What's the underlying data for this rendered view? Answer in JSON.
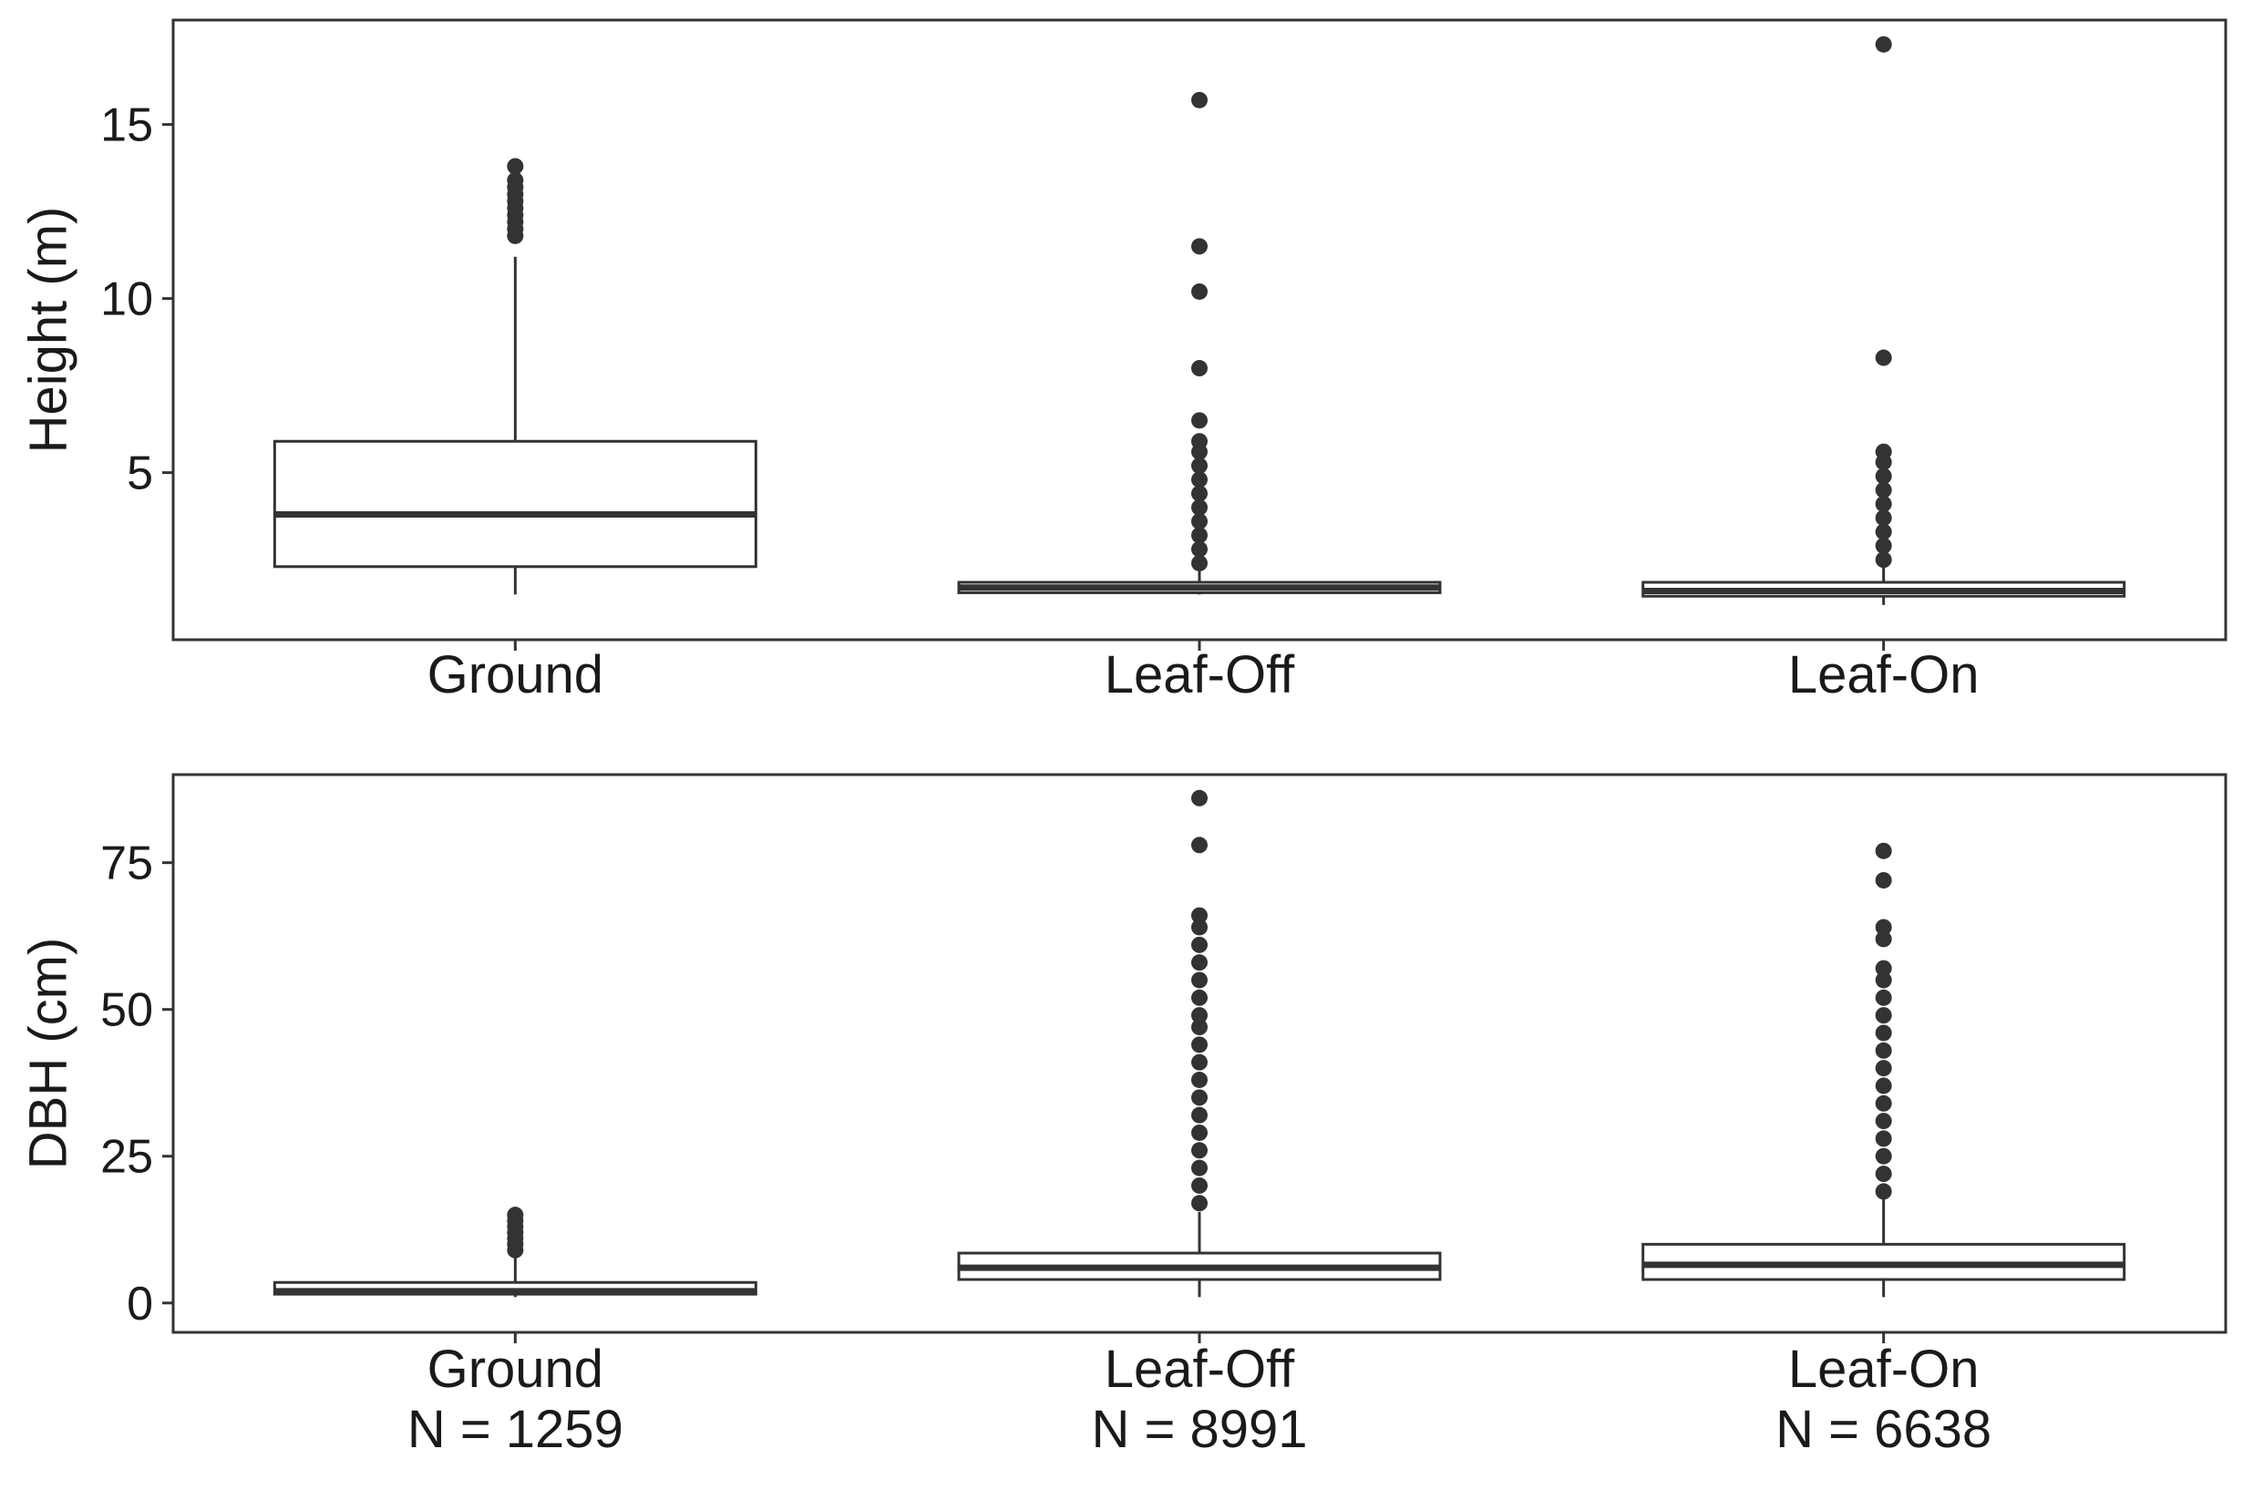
{
  "chart_data": [
    {
      "type": "boxplot",
      "ylabel": "Height (m)",
      "ylim": [
        0.2,
        18
      ],
      "yticks": [
        5,
        10,
        15
      ],
      "categories": [
        "Ground",
        "Leaf-Off",
        "Leaf-On"
      ],
      "counts": [],
      "boxes": [
        {
          "category": "Ground",
          "min": 1.5,
          "q1": 2.3,
          "median": 3.8,
          "q3": 5.9,
          "whisker_high": 11.2,
          "outliers": [
            11.8,
            12.0,
            12.2,
            12.4,
            12.6,
            12.8,
            13.0,
            13.2,
            13.4,
            13.8
          ]
        },
        {
          "category": "Leaf-Off",
          "min": 1.5,
          "q1": 1.55,
          "median": 1.7,
          "q3": 1.85,
          "whisker_high": 2.2,
          "outliers": [
            2.4,
            2.8,
            3.2,
            3.6,
            4.0,
            4.4,
            4.8,
            5.2,
            5.6,
            5.9,
            6.5,
            8.0,
            10.2,
            11.5,
            15.7
          ]
        },
        {
          "category": "Leaf-On",
          "min": 1.2,
          "q1": 1.45,
          "median": 1.6,
          "q3": 1.85,
          "whisker_high": 2.3,
          "outliers": [
            2.5,
            2.9,
            3.3,
            3.7,
            4.1,
            4.5,
            4.9,
            5.3,
            5.6,
            8.3,
            17.3
          ]
        }
      ]
    },
    {
      "type": "boxplot",
      "ylabel": "DBH (cm)",
      "ylim": [
        -5,
        90
      ],
      "yticks": [
        0,
        25,
        50,
        75
      ],
      "categories": [
        "Ground",
        "Leaf-Off",
        "Leaf-On"
      ],
      "counts": [
        "N = 1259",
        "N = 8991",
        "N = 6638"
      ],
      "boxes": [
        {
          "category": "Ground",
          "min": 1.0,
          "q1": 1.5,
          "median": 2.0,
          "q3": 3.5,
          "whisker_high": 8.0,
          "outliers": [
            9.0,
            10.0,
            11.0,
            12.0,
            13.0,
            14.0,
            15.0
          ]
        },
        {
          "category": "Leaf-Off",
          "min": 1.0,
          "q1": 4.0,
          "median": 6.0,
          "q3": 8.5,
          "whisker_high": 15.5,
          "outliers": [
            17,
            20,
            23,
            26,
            29,
            32,
            35,
            38,
            41,
            44,
            47,
            49,
            52,
            55,
            58,
            61,
            64,
            66,
            78,
            86
          ]
        },
        {
          "category": "Leaf-On",
          "min": 1.0,
          "q1": 4.0,
          "median": 6.5,
          "q3": 10.0,
          "whisker_high": 18.0,
          "outliers": [
            19,
            22,
            25,
            28,
            31,
            34,
            37,
            40,
            43,
            46,
            49,
            52,
            55,
            57,
            62,
            64,
            72,
            77
          ]
        }
      ]
    }
  ]
}
